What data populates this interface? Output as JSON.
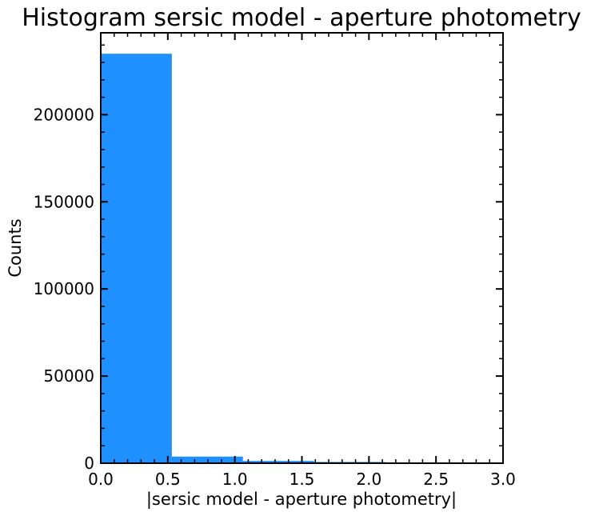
{
  "chart_data": {
    "type": "bar",
    "title": "Histogram sersic model - aperture photometry",
    "xlabel": "|sersic model - aperture photometry|",
    "ylabel": "Counts",
    "xlim": [
      0.0,
      3.0
    ],
    "ylim": [
      0,
      247000
    ],
    "xticks": [
      "0.0",
      "0.5",
      "1.0",
      "1.5",
      "2.0",
      "2.5",
      "3.0"
    ],
    "yticks": [
      "0",
      "50000",
      "100000",
      "150000",
      "200000"
    ],
    "bins": [
      {
        "x0": 0.0,
        "x1": 0.53,
        "count": 235000
      },
      {
        "x0": 0.53,
        "x1": 1.06,
        "count": 3800
      },
      {
        "x0": 1.06,
        "x1": 1.59,
        "count": 1300
      },
      {
        "x0": 1.59,
        "x1": 2.12,
        "count": 700
      },
      {
        "x0": 2.12,
        "x1": 2.65,
        "count": 0
      },
      {
        "x0": 2.65,
        "x1": 3.0,
        "count": 0
      }
    ],
    "bar_color": "#1e90ff",
    "grid": false
  }
}
